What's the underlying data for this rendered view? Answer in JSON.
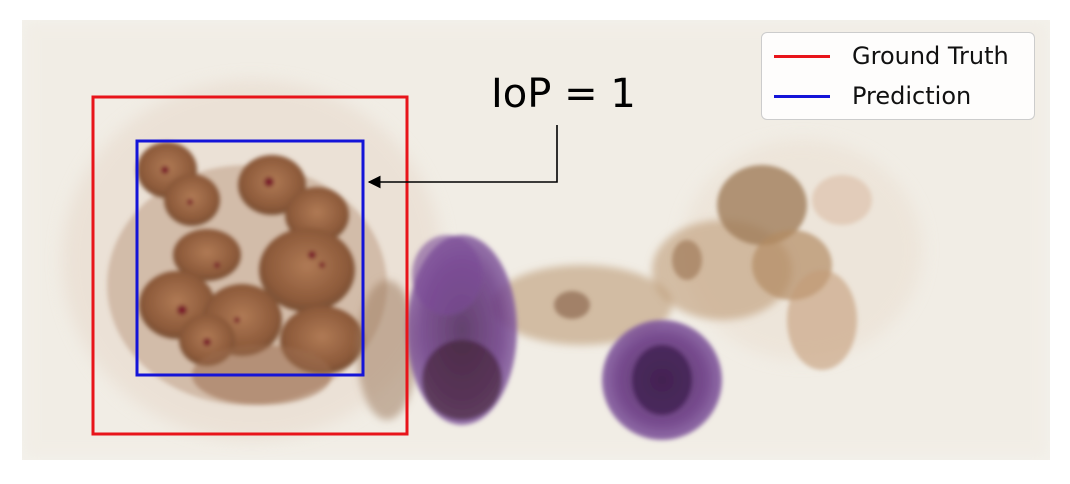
{
  "annotation": {
    "text": "IoP = 1"
  },
  "legend": {
    "entries": [
      {
        "label": "Ground Truth",
        "color": "#e8141a"
      },
      {
        "label": "Prediction",
        "color": "#1414d8"
      }
    ]
  },
  "boxes": {
    "ground_truth_color": "#e8141a",
    "prediction_color": "#1414d8"
  },
  "image": {
    "subject": "cytology-micrograph",
    "background_color": "#f3f1ec",
    "cell_colors": [
      "#8a5a3c",
      "#6c3f88",
      "#b48a62"
    ]
  }
}
